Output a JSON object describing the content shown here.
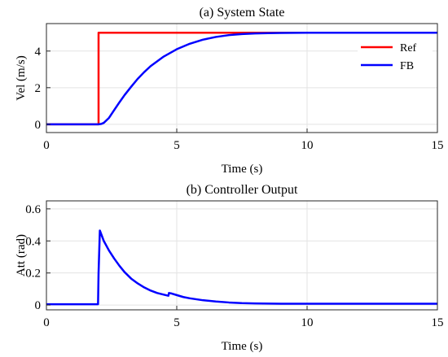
{
  "chart_data": [
    {
      "type": "line",
      "title": "(a) System State",
      "xlabel": "Time (s)",
      "ylabel": "Vel (m/s)",
      "xlim": [
        0,
        15
      ],
      "ylim": [
        -0.45,
        5.5
      ],
      "xticks": [
        0,
        5,
        10,
        15
      ],
      "yticks": [
        0,
        2,
        4
      ],
      "grid": true,
      "legend_position": "top-right",
      "series": [
        {
          "name": "Ref",
          "color": "#ff0000",
          "x": [
            0,
            2,
            2,
            15
          ],
          "y": [
            0,
            0,
            5,
            5
          ]
        },
        {
          "name": "FB",
          "color": "#0000ff",
          "x": [
            0,
            2.0,
            2.1,
            2.2,
            2.4,
            2.6,
            2.8,
            3.0,
            3.25,
            3.5,
            3.75,
            4.0,
            4.5,
            5.0,
            5.5,
            6.0,
            6.5,
            7.0,
            7.5,
            8.0,
            8.5,
            9.0,
            10.0,
            11.0,
            12.0,
            13.0,
            14.0,
            15.0
          ],
          "y": [
            0,
            0,
            0.02,
            0.08,
            0.35,
            0.78,
            1.2,
            1.6,
            2.05,
            2.48,
            2.85,
            3.18,
            3.7,
            4.1,
            4.4,
            4.62,
            4.77,
            4.87,
            4.93,
            4.96,
            4.98,
            4.99,
            5.0,
            5.0,
            5.0,
            5.0,
            5.0,
            5.0
          ]
        }
      ]
    },
    {
      "type": "line",
      "title": "(b) Controller Output",
      "xlabel": "Time (s)",
      "ylabel": "Att (rad)",
      "xlim": [
        0,
        15
      ],
      "ylim": [
        -0.03,
        0.65
      ],
      "xticks": [
        0,
        5,
        10,
        15
      ],
      "yticks": [
        0,
        0.2,
        0.4,
        0.6
      ],
      "grid": true,
      "series": [
        {
          "color": "#0000ff",
          "x": [
            0,
            1.98,
            2.0,
            2.05,
            2.2,
            2.4,
            2.6,
            2.8,
            3.0,
            3.25,
            3.5,
            3.75,
            4.0,
            4.25,
            4.5,
            4.68,
            4.7,
            4.8,
            5.0,
            5.25,
            5.5,
            6.0,
            6.5,
            7.0,
            7.5,
            8.0,
            9.0,
            10.0,
            11.0,
            12.0,
            13.0,
            14.0,
            15.0
          ],
          "y": [
            0.005,
            0.005,
            0.2,
            0.465,
            0.4,
            0.34,
            0.29,
            0.245,
            0.205,
            0.165,
            0.135,
            0.11,
            0.09,
            0.075,
            0.065,
            0.058,
            0.075,
            0.072,
            0.062,
            0.05,
            0.042,
            0.03,
            0.022,
            0.016,
            0.012,
            0.01,
            0.008,
            0.008,
            0.008,
            0.008,
            0.008,
            0.008,
            0.008
          ]
        }
      ]
    }
  ]
}
